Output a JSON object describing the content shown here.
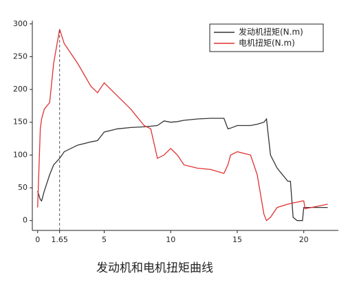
{
  "chart_data": {
    "type": "line",
    "title": "发动机和电机扭矩曲线",
    "x": [
      0,
      0.2,
      0.3,
      0.5,
      0.9,
      1.2,
      1.65,
      2,
      3,
      4,
      4.5,
      5,
      6,
      7,
      8,
      8.5,
      9,
      9.5,
      10,
      10.5,
      11,
      12,
      13,
      14,
      14.3,
      14.5,
      15,
      16,
      16.5,
      17,
      17.2,
      17.5,
      18,
      18.8,
      19,
      19.2,
      19.5,
      19.9,
      20,
      20.1,
      21.8
    ],
    "series": [
      {
        "name": "发动机扭矩(N.m)",
        "color": "#333333",
        "values": [
          45,
          32,
          30,
          45,
          70,
          85,
          95,
          105,
          115,
          120,
          122,
          135,
          140,
          142,
          143,
          144,
          145,
          152,
          150,
          151,
          153,
          155,
          156,
          156,
          140,
          141,
          145,
          145,
          147,
          150,
          155,
          100,
          80,
          60,
          60,
          5,
          0,
          0,
          20,
          20,
          20
        ]
      },
      {
        "name": "电机扭矩(N.m)",
        "color": "#e03030",
        "values": [
          20,
          140,
          155,
          170,
          180,
          240,
          292,
          270,
          240,
          205,
          195,
          210,
          190,
          170,
          145,
          140,
          95,
          100,
          110,
          100,
          85,
          80,
          78,
          72,
          85,
          100,
          105,
          100,
          70,
          10,
          0,
          5,
          20,
          25,
          26,
          27,
          28,
          30,
          30,
          18,
          25
        ]
      }
    ],
    "xlim": [
      -0.4,
      22.6
    ],
    "xticks": [
      0,
      1.65,
      5,
      10,
      15,
      20
    ],
    "ylim": [
      -15,
      305
    ],
    "yticks": [
      0,
      50,
      100,
      150,
      200,
      250,
      300
    ],
    "legend": "upper right"
  }
}
